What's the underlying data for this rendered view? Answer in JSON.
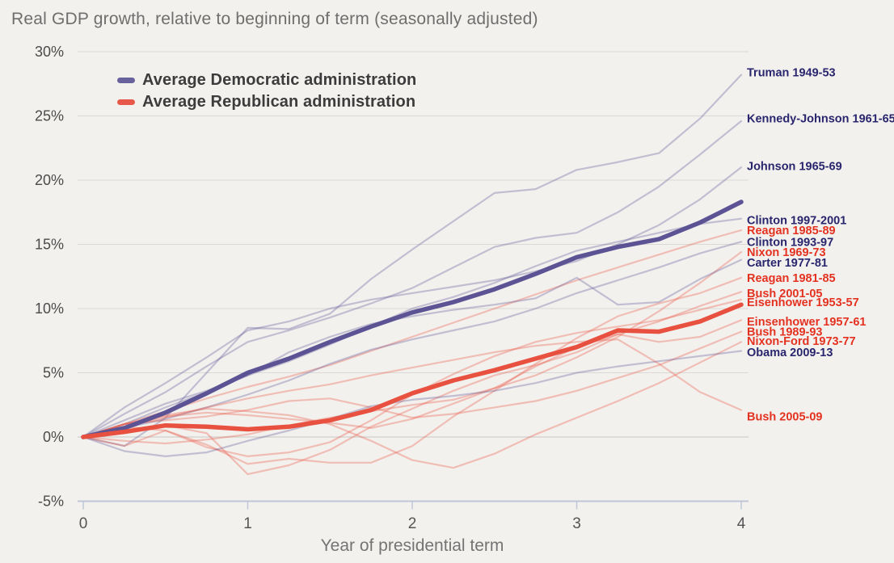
{
  "page": {
    "title": "Real GDP growth, relative to beginning of term (seasonally adjusted)",
    "x_axis_title": "Year of presidential term"
  },
  "legend": {
    "items": [
      {
        "label": "Average Democratic administration",
        "color": "#67619c"
      },
      {
        "label": "Average Republican administration",
        "color": "#e8584a"
      }
    ]
  },
  "chart_data": {
    "type": "line",
    "title": "Real GDP growth, relative to beginning of term (seasonally adjusted)",
    "xlabel": "Year of presidential term",
    "ylabel": "",
    "xlim": [
      0,
      4
    ],
    "ylim": [
      -5,
      30
    ],
    "grid": "horizontal",
    "legend_position": "top-left-inside",
    "x": [
      0,
      0.25,
      0.5,
      0.75,
      1,
      1.25,
      1.5,
      1.75,
      2,
      2.25,
      2.5,
      2.75,
      3,
      3.25,
      3.5,
      3.75,
      4
    ],
    "xticks": [
      {
        "value": 0,
        "label": "0"
      },
      {
        "value": 1,
        "label": "1"
      },
      {
        "value": 2,
        "label": "2"
      },
      {
        "value": 3,
        "label": "3"
      },
      {
        "value": 4,
        "label": "4"
      }
    ],
    "yticks": [
      {
        "value": 30,
        "label": "30%"
      },
      {
        "value": 25,
        "label": "25%"
      },
      {
        "value": 20,
        "label": "20%"
      },
      {
        "value": 15,
        "label": "15%"
      },
      {
        "value": 10,
        "label": "10%"
      },
      {
        "value": 5,
        "label": "5%"
      },
      {
        "value": 0,
        "label": "0%"
      },
      {
        "value": -5,
        "label": "-5%"
      }
    ],
    "colors": {
      "democratic_line": "#5b5394",
      "republican_line": "#e8503f",
      "democratic_label": "#29266e",
      "republican_label": "#e43221",
      "faint_opacity": 0.32,
      "gridline": "#dbd9d5",
      "zero_gridline": "#c8c6c3",
      "axis_line": "#bdc7d6",
      "tick_text": "#4b4b4b",
      "background": "#f3f1ee"
    },
    "averages": [
      {
        "name": "Average Democratic administration",
        "party": "Democratic",
        "values": [
          0,
          0.7,
          1.9,
          3.4,
          5.0,
          6.1,
          7.4,
          8.6,
          9.7,
          10.5,
          11.5,
          12.7,
          14.0,
          14.8,
          15.4,
          16.7,
          18.3
        ]
      },
      {
        "name": "Average Republican administration",
        "party": "Republican",
        "values": [
          0,
          0.4,
          0.9,
          0.8,
          0.6,
          0.8,
          1.3,
          2.1,
          3.4,
          4.4,
          5.2,
          6.1,
          7.0,
          8.3,
          8.2,
          9.0,
          10.3
        ]
      }
    ],
    "series": [
      {
        "name": "Truman 1949-53",
        "party": "Democratic",
        "label_y": 28.4,
        "values": [
          0,
          -0.7,
          1.5,
          5.0,
          8.5,
          8.4,
          9.6,
          12.3,
          14.6,
          16.8,
          19.0,
          19.3,
          20.8,
          21.4,
          22.1,
          24.8,
          28.2
        ]
      },
      {
        "name": "Kennedy-Johnson 1961-65",
        "party": "Democratic",
        "label_y": 24.8,
        "values": [
          0,
          1.8,
          3.5,
          5.5,
          7.4,
          8.3,
          9.3,
          10.4,
          11.6,
          13.2,
          14.8,
          15.5,
          15.9,
          17.5,
          19.5,
          22.0,
          24.6
        ]
      },
      {
        "name": "Johnson 1965-69",
        "party": "Democratic",
        "label_y": 21.1,
        "values": [
          0,
          2.3,
          4.2,
          6.2,
          8.3,
          9.0,
          10.0,
          10.7,
          11.2,
          11.7,
          12.2,
          12.9,
          13.7,
          15.0,
          16.5,
          18.5,
          21.0
        ]
      },
      {
        "name": "Clinton 1997-2001",
        "party": "Democratic",
        "label_y": 16.9,
        "values": [
          0,
          1.0,
          2.3,
          3.5,
          4.8,
          5.9,
          7.2,
          8.6,
          10.0,
          10.9,
          12.0,
          13.3,
          14.5,
          15.2,
          15.9,
          16.6,
          17.0
        ]
      },
      {
        "name": "Reagan 1985-89",
        "party": "Republican",
        "label_y": 16.1,
        "values": [
          0,
          1.0,
          2.0,
          3.0,
          3.9,
          4.7,
          5.6,
          6.7,
          7.8,
          8.9,
          10.0,
          11.1,
          12.2,
          13.2,
          14.2,
          15.2,
          16.1
        ]
      },
      {
        "name": "Clinton 1993-97",
        "party": "Democratic",
        "label_y": 15.2,
        "values": [
          0,
          0.7,
          1.4,
          2.3,
          3.3,
          4.4,
          5.7,
          6.8,
          7.6,
          8.3,
          9.0,
          10.0,
          11.2,
          12.2,
          13.2,
          14.3,
          15.2
        ]
      },
      {
        "name": "Nixon 1969-73",
        "party": "Republican",
        "label_y": 14.4,
        "values": [
          0,
          1.0,
          1.6,
          1.9,
          1.7,
          1.4,
          1.1,
          0.7,
          1.4,
          2.6,
          3.8,
          4.8,
          6.2,
          7.8,
          9.8,
          12.0,
          14.4
        ]
      },
      {
        "name": "Carter 1977-81",
        "party": "Democratic",
        "label_y": 13.6,
        "values": [
          0,
          1.3,
          2.6,
          3.6,
          4.8,
          6.6,
          7.8,
          8.8,
          9.4,
          9.9,
          10.3,
          10.8,
          12.4,
          10.3,
          10.5,
          12.3,
          13.8
        ]
      },
      {
        "name": "Reagan 1981-85",
        "party": "Republican",
        "label_y": 12.4,
        "values": [
          0,
          -0.7,
          0.5,
          -0.6,
          -2.1,
          -1.7,
          -2.0,
          -2.0,
          -0.7,
          1.6,
          3.6,
          5.7,
          7.7,
          9.4,
          10.4,
          11.2,
          12.4
        ]
      },
      {
        "name": "Bush 2001-05",
        "party": "Republican",
        "label_y": 11.2,
        "values": [
          0,
          -0.3,
          -0.5,
          -0.2,
          0.2,
          0.9,
          1.5,
          2.0,
          2.5,
          2.9,
          3.8,
          5.5,
          7.0,
          8.0,
          9.0,
          10.2,
          11.3
        ]
      },
      {
        "name": "Eisenhower 1953-57",
        "party": "Republican",
        "label_y": 10.5,
        "values": [
          0,
          0.8,
          0.5,
          -0.8,
          -1.5,
          -1.2,
          -0.4,
          1.3,
          3.3,
          4.9,
          6.3,
          7.4,
          8.1,
          8.6,
          9.1,
          9.9,
          10.7
        ]
      },
      {
        "name": "Einsenhower 1957-61",
        "party": "Republican",
        "label_y": 9.0,
        "values": [
          0,
          0.4,
          0.9,
          0.3,
          -2.9,
          -2.2,
          -1.0,
          0.8,
          2.2,
          3.6,
          4.8,
          5.6,
          6.6,
          8.0,
          7.4,
          7.8,
          9.1
        ]
      },
      {
        "name": "Bush 1989-93",
        "party": "Republican",
        "label_y": 8.2,
        "values": [
          0,
          1.0,
          1.3,
          1.6,
          2.1,
          2.8,
          3.0,
          2.3,
          1.5,
          1.8,
          2.3,
          2.8,
          3.6,
          4.6,
          5.6,
          6.9,
          8.2
        ]
      },
      {
        "name": "Nixon-Ford 1973-77",
        "party": "Republican",
        "label_y": 7.5,
        "values": [
          0,
          1.0,
          1.7,
          2.2,
          2.0,
          1.7,
          1.0,
          -0.3,
          -1.8,
          -2.4,
          -1.3,
          0.2,
          1.5,
          2.8,
          4.2,
          5.8,
          7.4
        ]
      },
      {
        "name": "Obama 2009-13",
        "party": "Democratic",
        "label_y": 6.6,
        "values": [
          0,
          -1.1,
          -1.5,
          -1.2,
          -0.3,
          0.5,
          1.4,
          2.4,
          2.9,
          3.2,
          3.6,
          4.2,
          5.0,
          5.5,
          5.9,
          6.3,
          6.7
        ]
      },
      {
        "name": "Bush 2005-09",
        "party": "Republican",
        "label_y": 1.6,
        "values": [
          0,
          0.8,
          1.5,
          2.3,
          3.0,
          3.6,
          4.1,
          4.8,
          5.4,
          6.0,
          6.6,
          7.1,
          7.4,
          7.6,
          5.7,
          3.5,
          2.1
        ]
      }
    ]
  }
}
